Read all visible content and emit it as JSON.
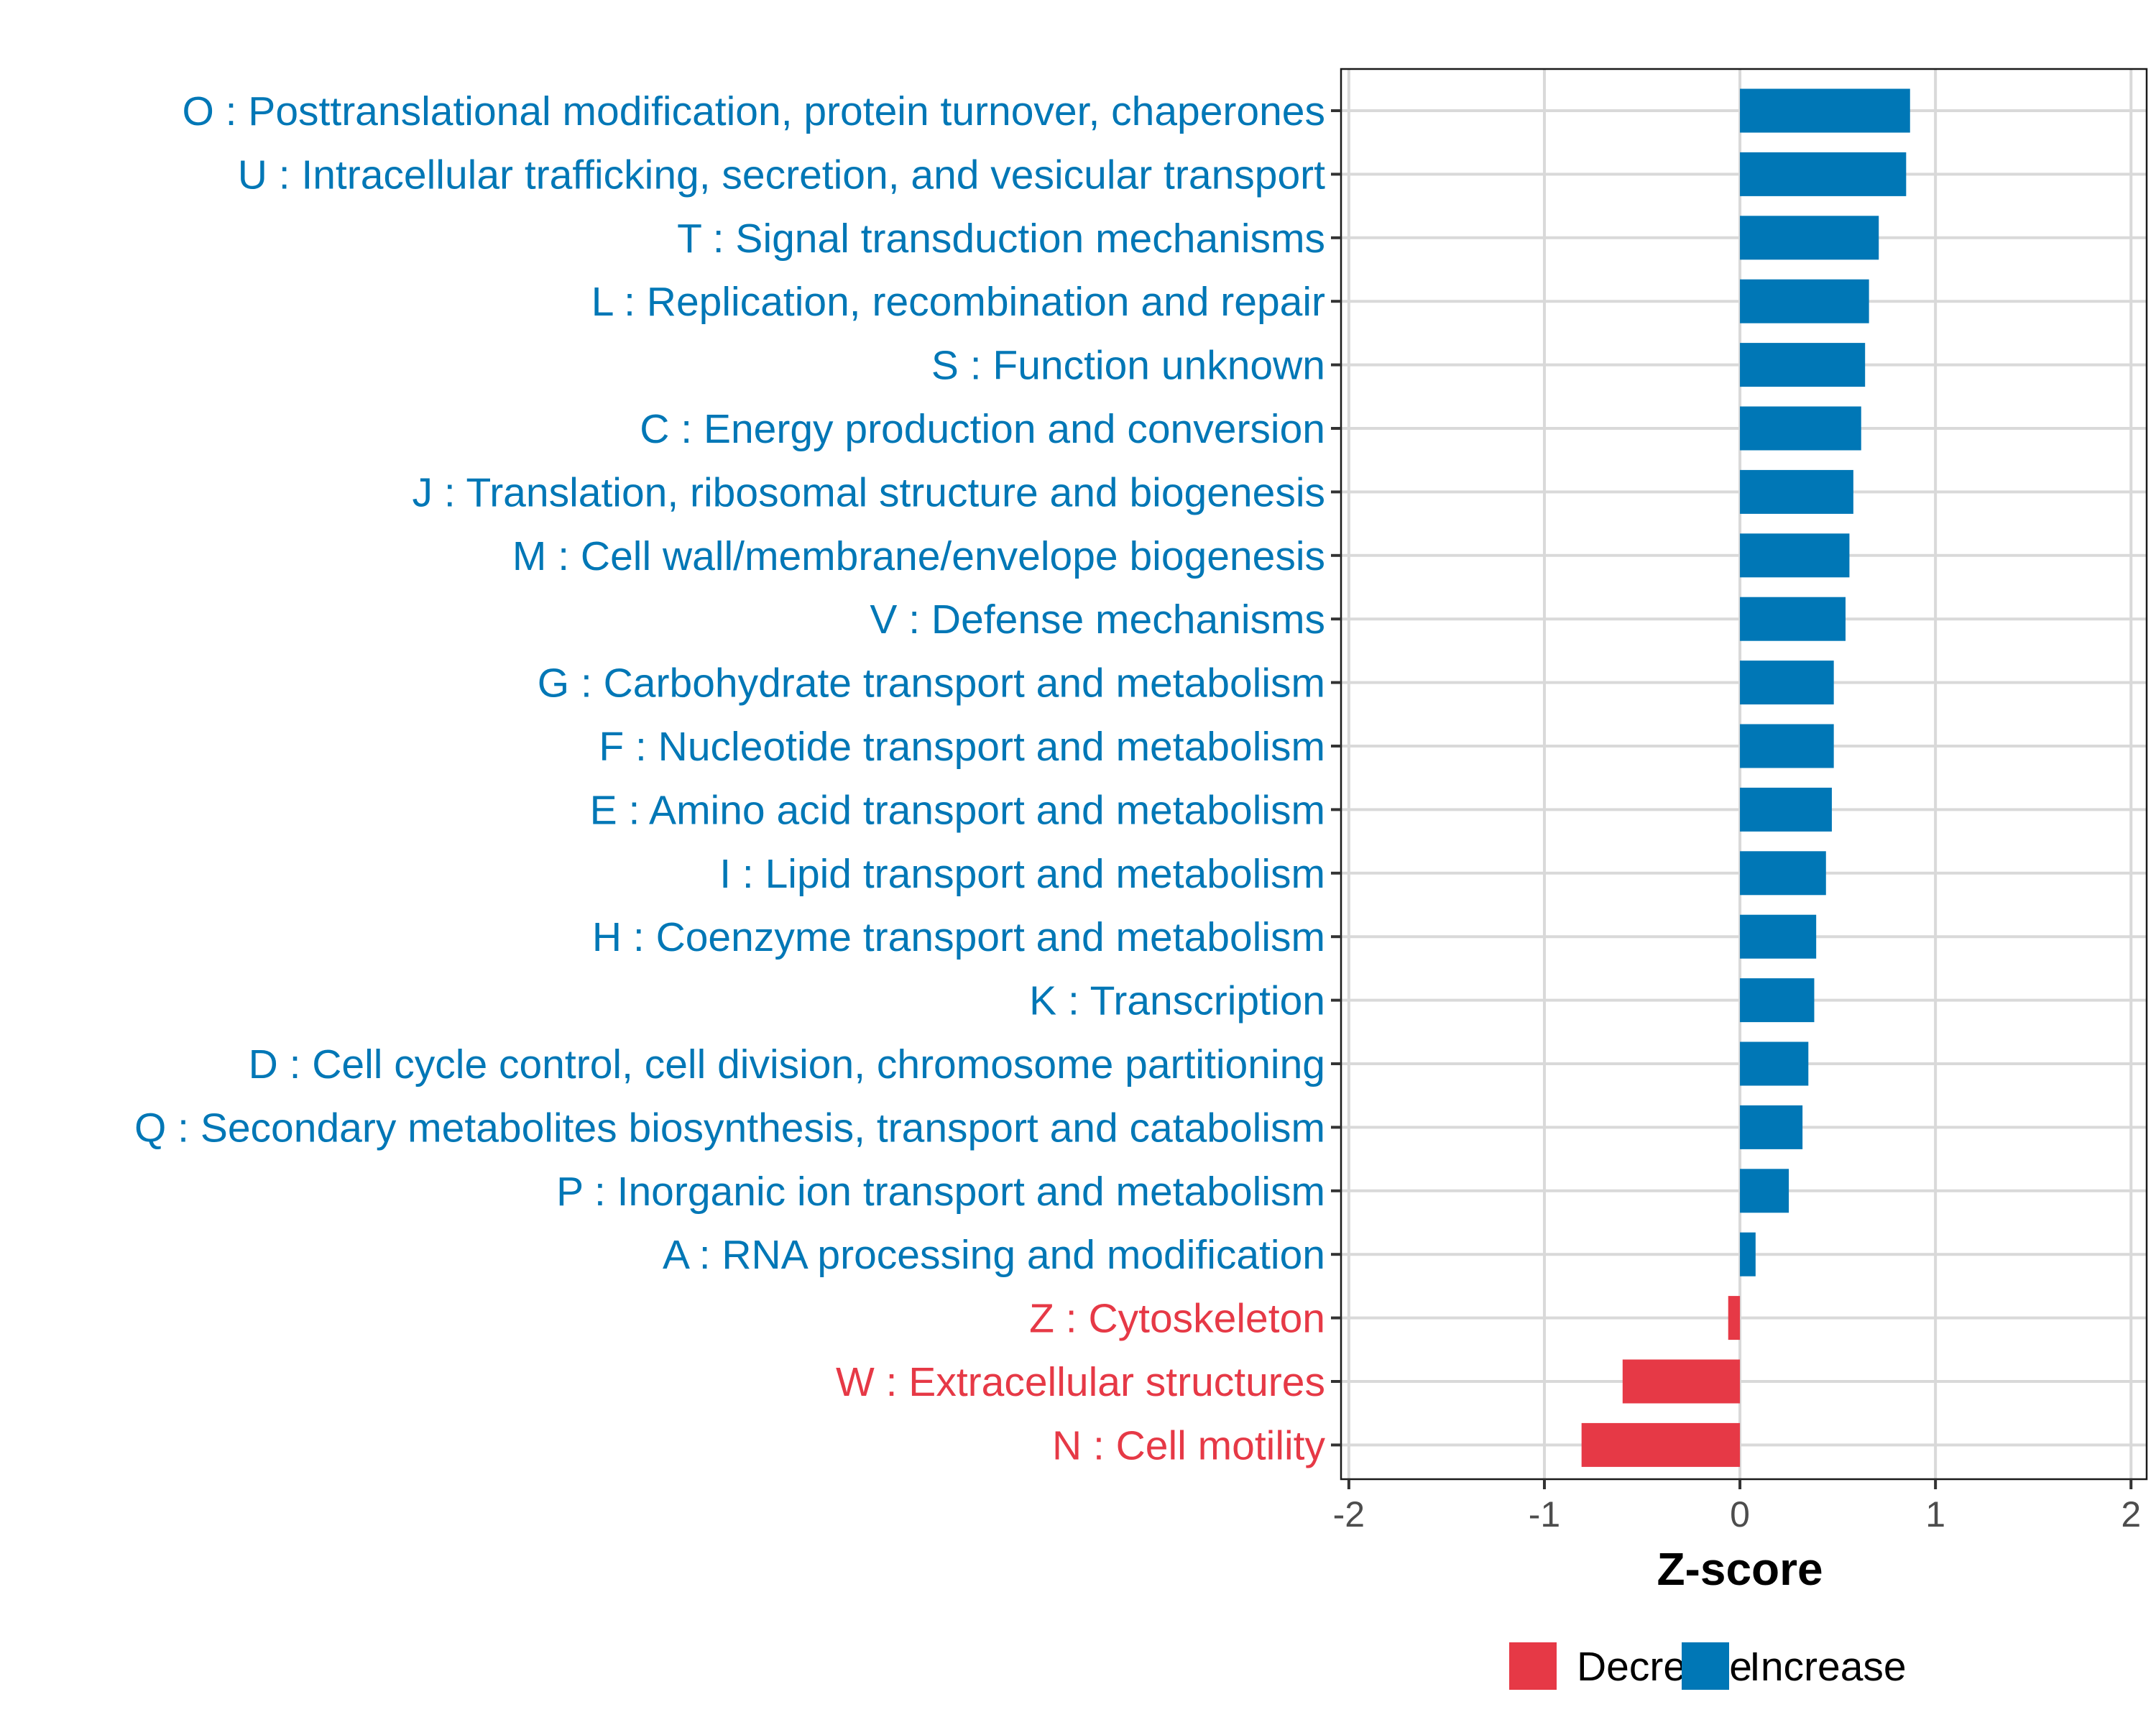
{
  "chart_data": {
    "type": "bar",
    "orientation": "horizontal",
    "title": "",
    "xlabel": "Z-score",
    "ylabel": "",
    "xlim": [
      -2.04,
      2.08
    ],
    "xticks": [
      -2,
      -1,
      0,
      1,
      2
    ],
    "xtick_labels": [
      "-2",
      "-1",
      "0",
      "1",
      "2"
    ],
    "grid": true,
    "legend_position": "bottom",
    "values_note": "approximate, read from bar lengths; estimated precision about ±0.02",
    "colors": {
      "Decrease": "#E63946",
      "Increase": "#0077B6"
    },
    "legend": [
      {
        "label": "Decrease",
        "color": "#E63946"
      },
      {
        "label": "Increase",
        "color": "#0077B6"
      }
    ],
    "categories": [
      "O : Posttranslational modification, protein turnover, chaperones",
      "U : Intracellular trafficking, secretion, and vesicular transport",
      "T : Signal transduction mechanisms",
      "L : Replication, recombination and repair",
      "S : Function unknown",
      "C : Energy production and conversion",
      "J : Translation, ribosomal structure and biogenesis",
      "M : Cell wall/membrane/envelope biogenesis",
      "V : Defense mechanisms",
      "G : Carbohydrate transport and metabolism",
      "F : Nucleotide transport and metabolism",
      "E : Amino acid transport and metabolism",
      "I : Lipid transport and metabolism",
      "H : Coenzyme transport and metabolism",
      "K : Transcription",
      "D : Cell cycle control, cell division, chromosome partitioning",
      "Q : Secondary metabolites biosynthesis, transport and catabolism",
      "P : Inorganic ion transport and metabolism",
      "A : RNA processing and modification",
      "Z : Cytoskeleton",
      "W : Extracellular structures",
      "N : Cell motility"
    ],
    "values": [
      0.87,
      0.85,
      0.71,
      0.66,
      0.64,
      0.62,
      0.58,
      0.56,
      0.54,
      0.48,
      0.48,
      0.47,
      0.44,
      0.39,
      0.38,
      0.35,
      0.32,
      0.25,
      0.08,
      -0.06,
      -0.6,
      -0.81
    ],
    "groups": [
      "Increase",
      "Increase",
      "Increase",
      "Increase",
      "Increase",
      "Increase",
      "Increase",
      "Increase",
      "Increase",
      "Increase",
      "Increase",
      "Increase",
      "Increase",
      "Increase",
      "Increase",
      "Increase",
      "Increase",
      "Increase",
      "Increase",
      "Decrease",
      "Decrease",
      "Decrease"
    ]
  }
}
